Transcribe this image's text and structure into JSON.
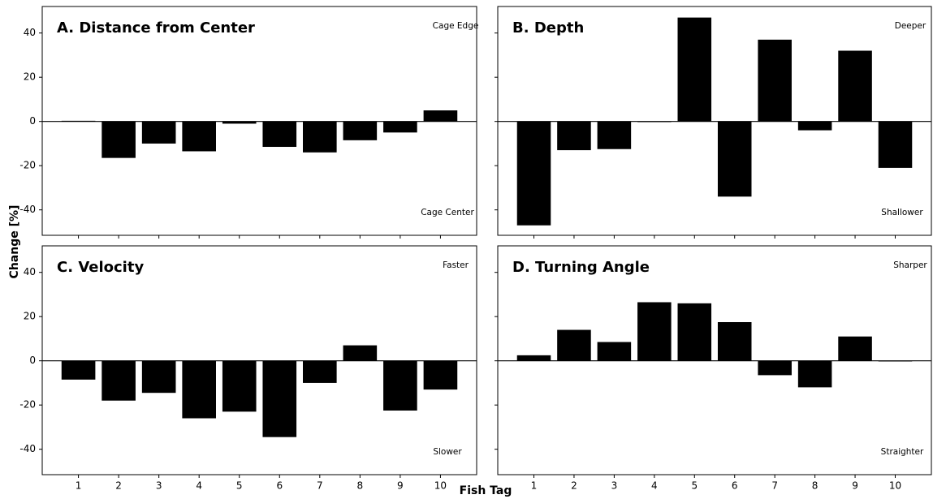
{
  "ylabel": "Change [%]",
  "xlabel": "Fish Tag",
  "chart_data": [
    {
      "type": "bar",
      "title": "A. Distance from Center",
      "top_note": "Cage Edge",
      "bottom_note": "Cage Center",
      "x": [
        1,
        2,
        3,
        4,
        5,
        6,
        7,
        8,
        9,
        10
      ],
      "values": [
        0.3,
        -16.5,
        -10,
        -13.5,
        -1,
        -11.5,
        -14,
        -8.5,
        -5,
        5
      ],
      "color": "#000000",
      "xlim": [
        0.1,
        10.9
      ],
      "ylim": [
        -51.5,
        52
      ],
      "xticks": [
        1,
        2,
        3,
        4,
        5,
        6,
        7,
        8,
        9,
        10
      ],
      "yticks": [
        -40,
        -20,
        0,
        20,
        40
      ],
      "xtick_labels": false,
      "ytick_labels": true,
      "zero_line": true
    },
    {
      "type": "bar",
      "title": "B. Depth",
      "top_note": "Deeper",
      "bottom_note": "Shallower",
      "x": [
        1,
        2,
        3,
        4,
        5,
        6,
        7,
        8,
        9,
        10
      ],
      "values": [
        -47,
        -13,
        -12.5,
        -0.3,
        47,
        -34,
        37,
        -4,
        32,
        -21
      ],
      "color": "#000000",
      "xlim": [
        0.1,
        10.9
      ],
      "ylim": [
        -51.5,
        52
      ],
      "xticks": [
        1,
        2,
        3,
        4,
        5,
        6,
        7,
        8,
        9,
        10
      ],
      "yticks": [
        -40,
        -20,
        0,
        20,
        40
      ],
      "xtick_labels": false,
      "ytick_labels": false,
      "zero_line": true
    },
    {
      "type": "bar",
      "title": "C. Velocity",
      "top_note": "Faster",
      "bottom_note": "Slower",
      "x": [
        1,
        2,
        3,
        4,
        5,
        6,
        7,
        8,
        9,
        10
      ],
      "values": [
        -8.5,
        -18,
        -14.5,
        -26,
        -23,
        -34.5,
        -10,
        7,
        -22.5,
        -13
      ],
      "color": "#000000",
      "xlim": [
        0.1,
        10.9
      ],
      "ylim": [
        -51.5,
        52
      ],
      "xticks": [
        1,
        2,
        3,
        4,
        5,
        6,
        7,
        8,
        9,
        10
      ],
      "yticks": [
        -40,
        -20,
        0,
        20,
        40
      ],
      "xtick_labels": true,
      "ytick_labels": true,
      "zero_line": true
    },
    {
      "type": "bar",
      "title": "D. Turning Angle",
      "top_note": "Sharper",
      "bottom_note": "Straighter",
      "x": [
        1,
        2,
        3,
        4,
        5,
        6,
        7,
        8,
        9,
        10
      ],
      "values": [
        2.5,
        14,
        8.5,
        26.5,
        26,
        17.5,
        -6.5,
        -12,
        11,
        -0.3
      ],
      "color": "#000000",
      "xlim": [
        0.1,
        10.9
      ],
      "ylim": [
        -51.5,
        52
      ],
      "xticks": [
        1,
        2,
        3,
        4,
        5,
        6,
        7,
        8,
        9,
        10
      ],
      "yticks": [
        -40,
        -20,
        0,
        20,
        40
      ],
      "xtick_labels": true,
      "ytick_labels": false,
      "zero_line": true
    }
  ]
}
